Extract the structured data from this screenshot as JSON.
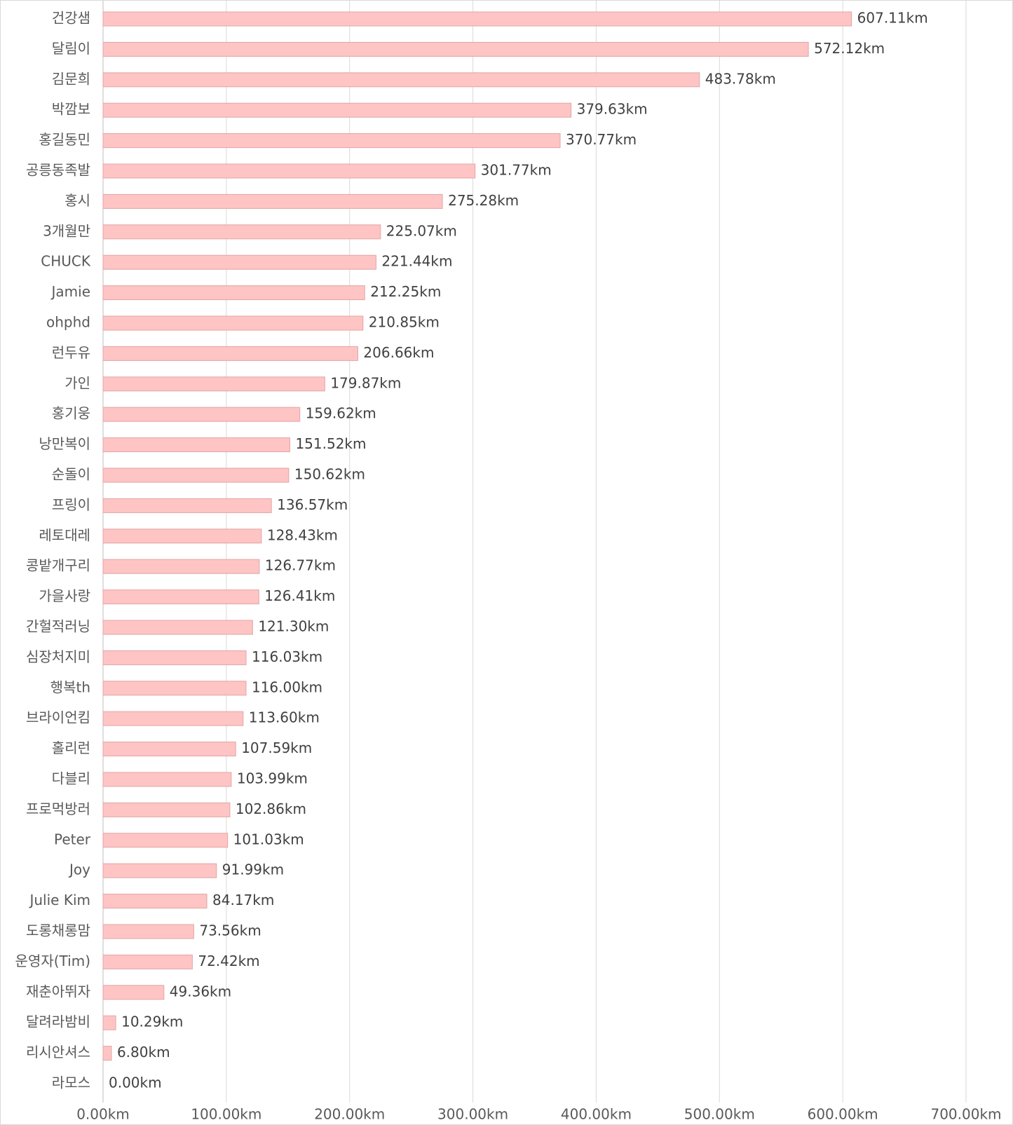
{
  "chart_data": {
    "type": "bar",
    "orientation": "horizontal",
    "categories": [
      "건강샘",
      "달림이",
      "김문희",
      "박깜보",
      "홍길동민",
      "공릉동족발",
      "홍시",
      "3개월만",
      "CHUCK",
      "Jamie",
      "ohphd",
      "런두유",
      "가인",
      "홍기웅",
      "낭만복이",
      "순돌이",
      "프링이",
      "레토대레",
      "콩밭개구리",
      "가을사랑",
      "간헐적러닝",
      "심장처지미",
      "행복th",
      "브라이언킴",
      "홀리런",
      "다블리",
      "프로먹방러",
      "Peter",
      "Joy",
      "Julie Kim",
      "도롱채롱맘",
      "운영자(Tim)",
      "재춘아뛰자",
      "달려라밤비",
      "리시안셔스",
      "라모스"
    ],
    "values": [
      607.11,
      572.12,
      483.78,
      379.63,
      370.77,
      301.77,
      275.28,
      225.07,
      221.44,
      212.25,
      210.85,
      206.66,
      179.87,
      159.62,
      151.52,
      150.62,
      136.57,
      128.43,
      126.77,
      126.41,
      121.3,
      116.03,
      116.0,
      113.6,
      107.59,
      103.99,
      102.86,
      101.03,
      91.99,
      84.17,
      73.56,
      72.42,
      49.36,
      10.29,
      6.8,
      0.0
    ],
    "value_labels": [
      "607.11km",
      "572.12km",
      "483.78km",
      "379.63km",
      "370.77km",
      "301.77km",
      "275.28km",
      "225.07km",
      "221.44km",
      "212.25km",
      "210.85km",
      "206.66km",
      "179.87km",
      "159.62km",
      "151.52km",
      "150.62km",
      "136.57km",
      "128.43km",
      "126.77km",
      "126.41km",
      "121.30km",
      "116.03km",
      "116.00km",
      "113.60km",
      "107.59km",
      "103.99km",
      "102.86km",
      "101.03km",
      "91.99km",
      "84.17km",
      "73.56km",
      "72.42km",
      "49.36km",
      "10.29km",
      "6.80km",
      "0.00km"
    ],
    "xlim": [
      0,
      700
    ],
    "xticks": [
      0,
      100,
      200,
      300,
      400,
      500,
      600,
      700
    ],
    "xtick_labels": [
      "0.00km",
      "100.00km",
      "200.00km",
      "300.00km",
      "400.00km",
      "500.00km",
      "600.00km",
      "700.00km"
    ],
    "grid": true,
    "legend": "none",
    "title": "",
    "xlabel": "",
    "ylabel": "",
    "bar_color": "#ffc4c4",
    "bar_edge_color": "#e0a6a6"
  }
}
